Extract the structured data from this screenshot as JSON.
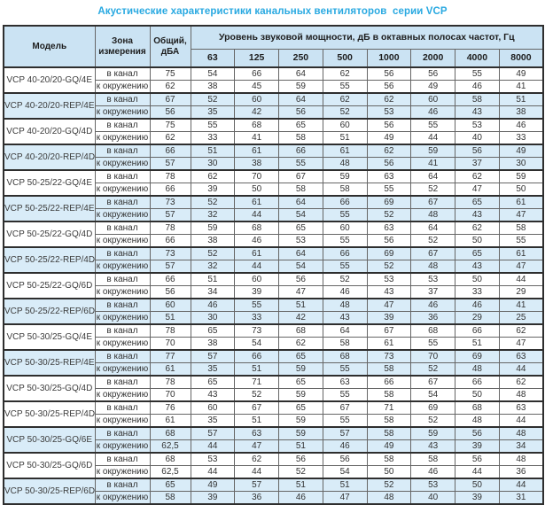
{
  "title": "Акустические характеристики канальных вентиляторов  серии VCP",
  "colors": {
    "title-color": "#29a9e1",
    "header-bg": "#cbe3f3",
    "alt-bg": "#d9ecf8",
    "row-bg": "#ffffff",
    "border-dark": "#2e2e2e",
    "border-mid": "#666666",
    "text-color": "#333333"
  },
  "table": {
    "headers": {
      "model": "Модель",
      "zone": "Зона измерения",
      "total": "Общий, дБА",
      "spl": "Уровень звуковой мощности, дБ в октавных полосах частот, Гц",
      "frequencies": [
        "63",
        "125",
        "250",
        "500",
        "1000",
        "2000",
        "4000",
        "8000"
      ]
    },
    "zone_labels": {
      "duct": "в канал",
      "ambient": "к окружению"
    },
    "models": [
      {
        "name": "VCP 40-20/20-GQ/4E",
        "shaded": false,
        "rows": [
          {
            "zone": "в канал",
            "total": "75",
            "values": [
              "54",
              "66",
              "64",
              "62",
              "56",
              "56",
              "55",
              "49"
            ]
          },
          {
            "zone": "к окружению",
            "total": "62",
            "values": [
              "38",
              "45",
              "59",
              "55",
              "56",
              "49",
              "46",
              "41"
            ]
          }
        ]
      },
      {
        "name": "VCP 40-20/20-REP/4E",
        "shaded": true,
        "rows": [
          {
            "zone": "в канал",
            "total": "67",
            "values": [
              "52",
              "60",
              "64",
              "62",
              "62",
              "60",
              "58",
              "51"
            ]
          },
          {
            "zone": "к окружению",
            "total": "56",
            "values": [
              "35",
              "42",
              "56",
              "52",
              "53",
              "46",
              "43",
              "38"
            ]
          }
        ]
      },
      {
        "name": "VCP 40-20/20-GQ/4D",
        "shaded": false,
        "rows": [
          {
            "zone": "в канал",
            "total": "75",
            "values": [
              "55",
              "68",
              "65",
              "60",
              "56",
              "55",
              "53",
              "46"
            ]
          },
          {
            "zone": "к окружению",
            "total": "62",
            "values": [
              "33",
              "41",
              "58",
              "51",
              "49",
              "44",
              "40",
              "33"
            ]
          }
        ]
      },
      {
        "name": "VCP 40-20/20-REP/4D",
        "shaded": true,
        "rows": [
          {
            "zone": "в канал",
            "total": "66",
            "values": [
              "51",
              "61",
              "66",
              "61",
              "62",
              "59",
              "56",
              "49"
            ]
          },
          {
            "zone": "к окружению",
            "total": "57",
            "values": [
              "30",
              "38",
              "55",
              "48",
              "56",
              "41",
              "37",
              "30"
            ]
          }
        ]
      },
      {
        "name": "VCP 50-25/22-GQ/4E",
        "shaded": false,
        "rows": [
          {
            "zone": "в канал",
            "total": "78",
            "values": [
              "62",
              "70",
              "67",
              "59",
              "63",
              "64",
              "62",
              "59"
            ]
          },
          {
            "zone": "к окружению",
            "total": "66",
            "values": [
              "39",
              "50",
              "58",
              "58",
              "55",
              "52",
              "47",
              "50"
            ]
          }
        ]
      },
      {
        "name": "VCP 50-25/22-REP/4E",
        "shaded": true,
        "rows": [
          {
            "zone": "в канал",
            "total": "73",
            "values": [
              "52",
              "61",
              "64",
              "66",
              "69",
              "67",
              "65",
              "61"
            ]
          },
          {
            "zone": "к окружению",
            "total": "57",
            "values": [
              "32",
              "44",
              "54",
              "55",
              "52",
              "48",
              "43",
              "47"
            ]
          }
        ]
      },
      {
        "name": "VCP 50-25/22-GQ/4D",
        "shaded": false,
        "rows": [
          {
            "zone": "в канал",
            "total": "78",
            "values": [
              "59",
              "68",
              "65",
              "60",
              "63",
              "64",
              "62",
              "58"
            ]
          },
          {
            "zone": "к окружению",
            "total": "66",
            "values": [
              "38",
              "46",
              "53",
              "55",
              "56",
              "52",
              "50",
              "55"
            ]
          }
        ]
      },
      {
        "name": "VCP 50-25/22-REP/4D",
        "shaded": true,
        "rows": [
          {
            "zone": "в канал",
            "total": "73",
            "values": [
              "52",
              "61",
              "64",
              "66",
              "69",
              "67",
              "65",
              "61"
            ]
          },
          {
            "zone": "к окружению",
            "total": "57",
            "values": [
              "32",
              "44",
              "54",
              "55",
              "52",
              "48",
              "43",
              "47"
            ]
          }
        ]
      },
      {
        "name": "VCP 50-25/22-GQ/6D",
        "shaded": false,
        "rows": [
          {
            "zone": "в канал",
            "total": "66",
            "values": [
              "51",
              "60",
              "56",
              "52",
              "53",
              "53",
              "50",
              "44"
            ]
          },
          {
            "zone": "к окружению",
            "total": "56",
            "values": [
              "34",
              "39",
              "47",
              "46",
              "43",
              "37",
              "33",
              "29"
            ]
          }
        ]
      },
      {
        "name": "VCP 50-25/22-REP/6D",
        "shaded": true,
        "rows": [
          {
            "zone": "в канал",
            "total": "60",
            "values": [
              "46",
              "55",
              "51",
              "48",
              "47",
              "46",
              "46",
              "41"
            ]
          },
          {
            "zone": "к окружению",
            "total": "51",
            "values": [
              "30",
              "33",
              "42",
              "43",
              "39",
              "36",
              "29",
              "25"
            ]
          }
        ]
      },
      {
        "name": "VCP 50-30/25-GQ/4E",
        "shaded": false,
        "rows": [
          {
            "zone": "в канал",
            "total": "78",
            "values": [
              "65",
              "73",
              "68",
              "64",
              "67",
              "68",
              "66",
              "62"
            ]
          },
          {
            "zone": "к окружению",
            "total": "70",
            "values": [
              "38",
              "54",
              "62",
              "58",
              "61",
              "55",
              "51",
              "47"
            ]
          }
        ]
      },
      {
        "name": "VCP 50-30/25-REP/4E",
        "shaded": true,
        "rows": [
          {
            "zone": "в канал",
            "total": "77",
            "values": [
              "57",
              "66",
              "65",
              "68",
              "73",
              "70",
              "69",
              "63"
            ]
          },
          {
            "zone": "к окружению",
            "total": "61",
            "values": [
              "35",
              "51",
              "59",
              "55",
              "58",
              "52",
              "48",
              "44"
            ]
          }
        ]
      },
      {
        "name": "VCP 50-30/25-GQ/4D",
        "shaded": false,
        "rows": [
          {
            "zone": "в канал",
            "total": "78",
            "values": [
              "65",
              "71",
              "65",
              "63",
              "66",
              "67",
              "66",
              "62"
            ]
          },
          {
            "zone": "к окружению",
            "total": "70",
            "values": [
              "43",
              "52",
              "59",
              "55",
              "58",
              "54",
              "50",
              "48"
            ]
          }
        ]
      },
      {
        "name": "VCP 50-30/25-REP/4D",
        "shaded": false,
        "rows": [
          {
            "zone": "в канал",
            "total": "76",
            "values": [
              "60",
              "67",
              "65",
              "67",
              "71",
              "69",
              "68",
              "63"
            ]
          },
          {
            "zone": "к окружению",
            "total": "61",
            "values": [
              "35",
              "51",
              "59",
              "55",
              "58",
              "52",
              "48",
              "44"
            ]
          }
        ]
      },
      {
        "name": "VCP 50-30/25-GQ/6E",
        "shaded": true,
        "rows": [
          {
            "zone": "в канал",
            "total": "68",
            "values": [
              "57",
              "63",
              "59",
              "57",
              "58",
              "59",
              "56",
              "48"
            ]
          },
          {
            "zone": "к окружению",
            "total": "62,5",
            "values": [
              "44",
              "47",
              "51",
              "46",
              "49",
              "43",
              "39",
              "34"
            ]
          }
        ]
      },
      {
        "name": "VCP 50-30/25-GQ/6D",
        "shaded": false,
        "rows": [
          {
            "zone": "в канал",
            "total": "68",
            "values": [
              "53",
              "62",
              "56",
              "56",
              "58",
              "58",
              "56",
              "48"
            ]
          },
          {
            "zone": "к окружению",
            "total": "62,5",
            "values": [
              "44",
              "44",
              "52",
              "54",
              "50",
              "46",
              "44",
              "36"
            ]
          }
        ]
      },
      {
        "name": "VCP 50-30/25-REP/6D",
        "shaded": true,
        "rows": [
          {
            "zone": "в канал",
            "total": "65",
            "values": [
              "49",
              "57",
              "51",
              "51",
              "52",
              "53",
              "50",
              "44"
            ]
          },
          {
            "zone": "к окружению",
            "total": "58",
            "values": [
              "39",
              "36",
              "46",
              "47",
              "48",
              "40",
              "39",
              "31"
            ]
          }
        ]
      }
    ]
  }
}
